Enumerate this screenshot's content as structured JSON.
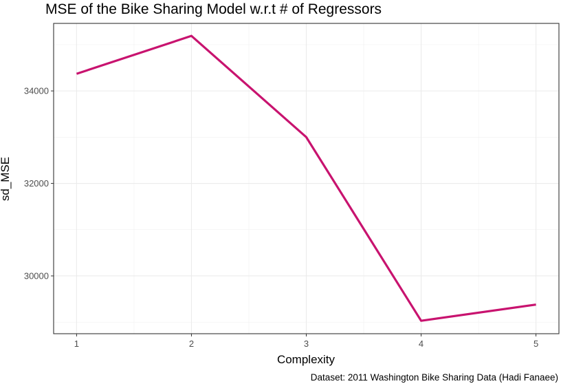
{
  "chart_data": {
    "type": "line",
    "title": "MSE of the Bike Sharing Model w.r.t # of Regressors",
    "xlabel": "Complexity",
    "ylabel": "sd_MSE",
    "caption": "Dataset: 2011 Washington Bike Sharing Data (Hadi Fanaee)",
    "x": [
      1,
      2,
      3,
      4,
      5
    ],
    "series": [
      {
        "values": [
          34370,
          35190,
          33000,
          29030,
          29380
        ]
      }
    ],
    "xlim": [
      0.8,
      5.2
    ],
    "ylim": [
      28750,
      35460
    ],
    "x_ticks": [
      "1",
      "2",
      "3",
      "4",
      "5"
    ],
    "y_ticks": [
      "30000",
      "32000",
      "34000"
    ],
    "grid": true,
    "line_color": "#c8136f"
  }
}
